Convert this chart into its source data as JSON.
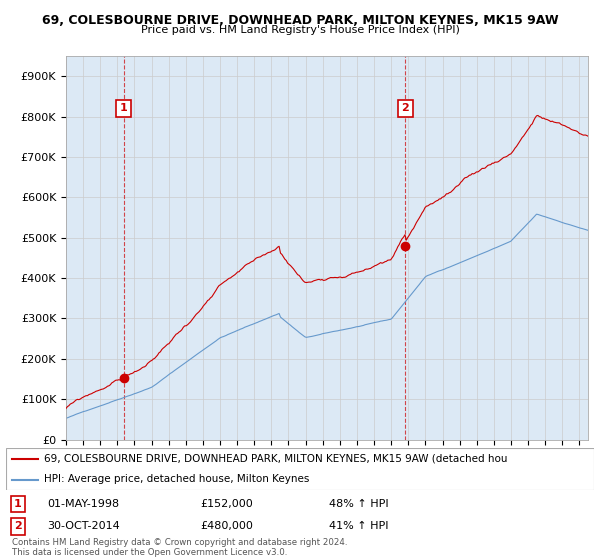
{
  "title_line1": "69, COLESBOURNE DRIVE, DOWNHEAD PARK, MILTON KEYNES, MK15 9AW",
  "title_line2": "Price paid vs. HM Land Registry's House Price Index (HPI)",
  "legend_line1": "69, COLESBOURNE DRIVE, DOWNHEAD PARK, MILTON KEYNES, MK15 9AW (detached hou",
  "legend_line2": "HPI: Average price, detached house, Milton Keynes",
  "annotation1_date": "01-MAY-1998",
  "annotation1_price": "£152,000",
  "annotation1_hpi": "48% ↑ HPI",
  "annotation2_date": "30-OCT-2014",
  "annotation2_price": "£480,000",
  "annotation2_hpi": "41% ↑ HPI",
  "footer": "Contains HM Land Registry data © Crown copyright and database right 2024.\nThis data is licensed under the Open Government Licence v3.0.",
  "sale1_year": 1998.37,
  "sale1_price": 152000,
  "sale2_year": 2014.83,
  "sale2_price": 480000,
  "yticks": [
    0,
    100000,
    200000,
    300000,
    400000,
    500000,
    600000,
    700000,
    800000,
    900000
  ],
  "ytick_labels": [
    "£0",
    "£100K",
    "£200K",
    "£300K",
    "£400K",
    "£500K",
    "£600K",
    "£700K",
    "£800K",
    "£900K"
  ],
  "xlim_start": 1995.0,
  "xlim_end": 2025.5,
  "ylim_min": 0,
  "ylim_max": 950000,
  "grid_color": "#cccccc",
  "hpi_color": "#6699cc",
  "property_color": "#cc0000",
  "plot_bg_color": "#dce9f5",
  "background_color": "#ffffff",
  "annotation_box_color": "#cc0000"
}
